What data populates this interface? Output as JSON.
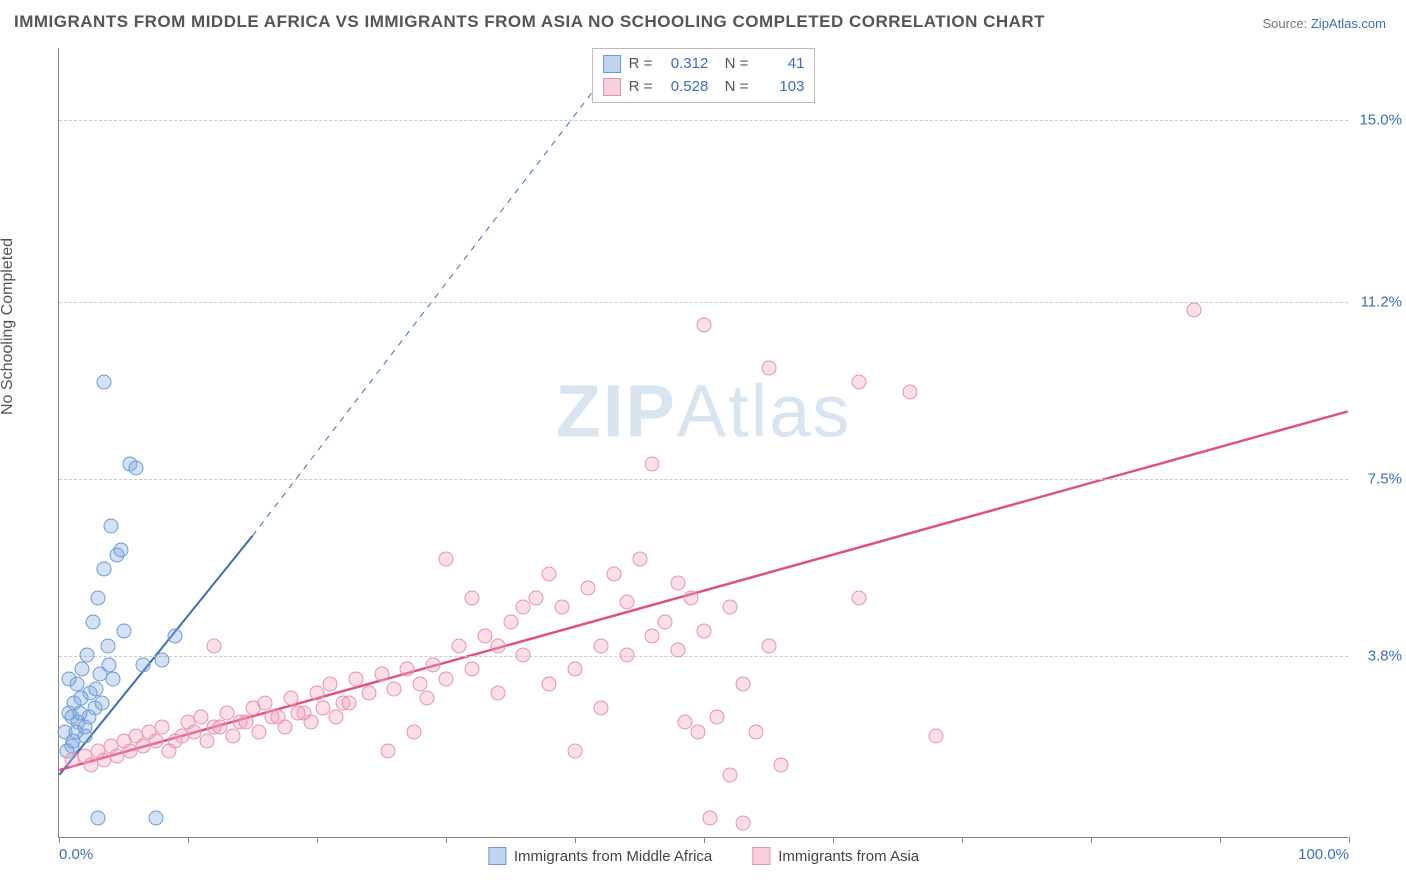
{
  "title": "IMMIGRANTS FROM MIDDLE AFRICA VS IMMIGRANTS FROM ASIA NO SCHOOLING COMPLETED CORRELATION CHART",
  "source_prefix": "Source: ",
  "source_link": "ZipAtlas.com",
  "y_axis_label": "No Schooling Completed",
  "watermark_bold": "ZIP",
  "watermark_light": "Atlas",
  "chart": {
    "type": "scatter",
    "xlim": [
      0,
      100
    ],
    "ylim": [
      0,
      16.5
    ],
    "x_tick_positions": [
      0,
      10,
      20,
      30,
      40,
      50,
      60,
      70,
      80,
      90,
      100
    ],
    "x_tick_labels_shown": {
      "0": "0.0%",
      "100": "100.0%"
    },
    "y_gridlines": [
      3.8,
      7.5,
      11.2,
      15.0
    ],
    "y_tick_labels": [
      "3.8%",
      "7.5%",
      "11.2%",
      "15.0%"
    ],
    "background_color": "#ffffff",
    "grid_color": "#cccccc",
    "grid_dash": "4,4",
    "axis_color": "#888888",
    "point_radius": 7.5,
    "series": [
      {
        "name": "Immigrants from Middle Africa",
        "color_fill": "rgba(130,170,220,0.35)",
        "color_stroke": "#6a9bd8",
        "R": "0.312",
        "N": "41",
        "trend": {
          "x1": 0,
          "y1": 1.3,
          "x2": 15,
          "y2": 6.3,
          "x2_dash": 44,
          "y2_dash": 16.5,
          "stroke": "#3b6fb6",
          "stroke_width": 2,
          "dash_width": 1
        },
        "points": [
          [
            0.5,
            2.2
          ],
          [
            0.8,
            2.6
          ],
          [
            1.0,
            1.9
          ],
          [
            1.2,
            2.8
          ],
          [
            1.4,
            3.2
          ],
          [
            1.5,
            2.4
          ],
          [
            1.8,
            3.5
          ],
          [
            2.0,
            2.1
          ],
          [
            2.2,
            3.8
          ],
          [
            2.4,
            3.0
          ],
          [
            2.6,
            4.5
          ],
          [
            2.8,
            2.7
          ],
          [
            3.0,
            5.0
          ],
          [
            3.2,
            3.4
          ],
          [
            3.5,
            5.6
          ],
          [
            3.8,
            4.0
          ],
          [
            4.0,
            6.5
          ],
          [
            4.2,
            3.3
          ],
          [
            4.5,
            5.9
          ],
          [
            4.8,
            6.0
          ],
          [
            5.0,
            4.3
          ],
          [
            5.5,
            7.8
          ],
          [
            6.0,
            7.7
          ],
          [
            6.5,
            3.6
          ],
          [
            3.0,
            0.4
          ],
          [
            7.5,
            0.4
          ],
          [
            8.0,
            3.7
          ],
          [
            9.0,
            4.2
          ],
          [
            3.5,
            9.5
          ],
          [
            2.0,
            2.3
          ],
          [
            1.0,
            2.5
          ],
          [
            0.6,
            1.8
          ],
          [
            1.3,
            2.2
          ],
          [
            1.7,
            2.9
          ],
          [
            2.3,
            2.5
          ],
          [
            2.9,
            3.1
          ],
          [
            3.3,
            2.8
          ],
          [
            3.9,
            3.6
          ],
          [
            0.8,
            3.3
          ],
          [
            1.1,
            2.0
          ],
          [
            1.6,
            2.6
          ]
        ]
      },
      {
        "name": "Immigrants from Asia",
        "color_fill": "rgba(240,160,190,0.35)",
        "color_stroke": "#e890b0",
        "R": "0.528",
        "N": "103",
        "trend": {
          "x1": 0,
          "y1": 1.4,
          "x2": 100,
          "y2": 8.9,
          "stroke": "#e05088",
          "stroke_width": 2.5
        },
        "points": [
          [
            1.0,
            1.6
          ],
          [
            2.0,
            1.7
          ],
          [
            3.0,
            1.8
          ],
          [
            4.0,
            1.9
          ],
          [
            5.0,
            2.0
          ],
          [
            6.0,
            2.1
          ],
          [
            7.0,
            2.2
          ],
          [
            8.0,
            2.3
          ],
          [
            9.0,
            2.0
          ],
          [
            10.0,
            2.4
          ],
          [
            11.0,
            2.5
          ],
          [
            12.0,
            2.3
          ],
          [
            13.0,
            2.6
          ],
          [
            14.0,
            2.4
          ],
          [
            15.0,
            2.7
          ],
          [
            16.0,
            2.8
          ],
          [
            17.0,
            2.5
          ],
          [
            18.0,
            2.9
          ],
          [
            19.0,
            2.6
          ],
          [
            20.0,
            3.0
          ],
          [
            21.0,
            3.2
          ],
          [
            22.0,
            2.8
          ],
          [
            23.0,
            3.3
          ],
          [
            24.0,
            3.0
          ],
          [
            25.0,
            3.4
          ],
          [
            26.0,
            3.1
          ],
          [
            27.0,
            3.5
          ],
          [
            28.0,
            3.2
          ],
          [
            29.0,
            3.6
          ],
          [
            30.0,
            3.3
          ],
          [
            31.0,
            4.0
          ],
          [
            32.0,
            3.5
          ],
          [
            33.0,
            4.2
          ],
          [
            34.0,
            3.0
          ],
          [
            35.0,
            4.5
          ],
          [
            36.0,
            3.8
          ],
          [
            37.0,
            5.0
          ],
          [
            38.0,
            3.2
          ],
          [
            39.0,
            4.8
          ],
          [
            40.0,
            3.5
          ],
          [
            41.0,
            5.2
          ],
          [
            42.0,
            4.0
          ],
          [
            43.0,
            5.5
          ],
          [
            44.0,
            3.8
          ],
          [
            45.0,
            5.8
          ],
          [
            46.0,
            4.2
          ],
          [
            47.0,
            4.5
          ],
          [
            48.0,
            3.9
          ],
          [
            49.0,
            5.0
          ],
          [
            50.0,
            4.3
          ],
          [
            51.0,
            2.5
          ],
          [
            52.0,
            4.8
          ],
          [
            53.0,
            3.2
          ],
          [
            54.0,
            2.2
          ],
          [
            55.0,
            4.0
          ],
          [
            56.0,
            1.5
          ],
          [
            30.0,
            5.8
          ],
          [
            32.0,
            5.0
          ],
          [
            34.0,
            4.0
          ],
          [
            36.0,
            4.8
          ],
          [
            38.0,
            5.5
          ],
          [
            40.0,
            1.8
          ],
          [
            42.0,
            2.7
          ],
          [
            44.0,
            4.9
          ],
          [
            46.0,
            7.8
          ],
          [
            48.0,
            5.3
          ],
          [
            50.0,
            10.7
          ],
          [
            52.0,
            1.3
          ],
          [
            55.0,
            9.8
          ],
          [
            62.0,
            9.5
          ],
          [
            50.5,
            0.4
          ],
          [
            53.0,
            0.3
          ],
          [
            12.0,
            4.0
          ],
          [
            48.5,
            2.4
          ],
          [
            49.5,
            2.2
          ],
          [
            2.5,
            1.5
          ],
          [
            3.5,
            1.6
          ],
          [
            4.5,
            1.7
          ],
          [
            5.5,
            1.8
          ],
          [
            6.5,
            1.9
          ],
          [
            7.5,
            2.0
          ],
          [
            8.5,
            1.8
          ],
          [
            9.5,
            2.1
          ],
          [
            10.5,
            2.2
          ],
          [
            11.5,
            2.0
          ],
          [
            12.5,
            2.3
          ],
          [
            13.5,
            2.1
          ],
          [
            14.5,
            2.4
          ],
          [
            15.5,
            2.2
          ],
          [
            16.5,
            2.5
          ],
          [
            17.5,
            2.3
          ],
          [
            18.5,
            2.6
          ],
          [
            19.5,
            2.4
          ],
          [
            20.5,
            2.7
          ],
          [
            21.5,
            2.5
          ],
          [
            22.5,
            2.8
          ],
          [
            62.0,
            5.0
          ],
          [
            66.0,
            9.3
          ],
          [
            68.0,
            2.1
          ],
          [
            88.0,
            11.0
          ],
          [
            25.5,
            1.8
          ],
          [
            27.5,
            2.2
          ],
          [
            28.5,
            2.9
          ]
        ]
      }
    ]
  },
  "legend": {
    "series1_label": "Immigrants from Middle Africa",
    "series2_label": "Immigrants from Asia"
  }
}
